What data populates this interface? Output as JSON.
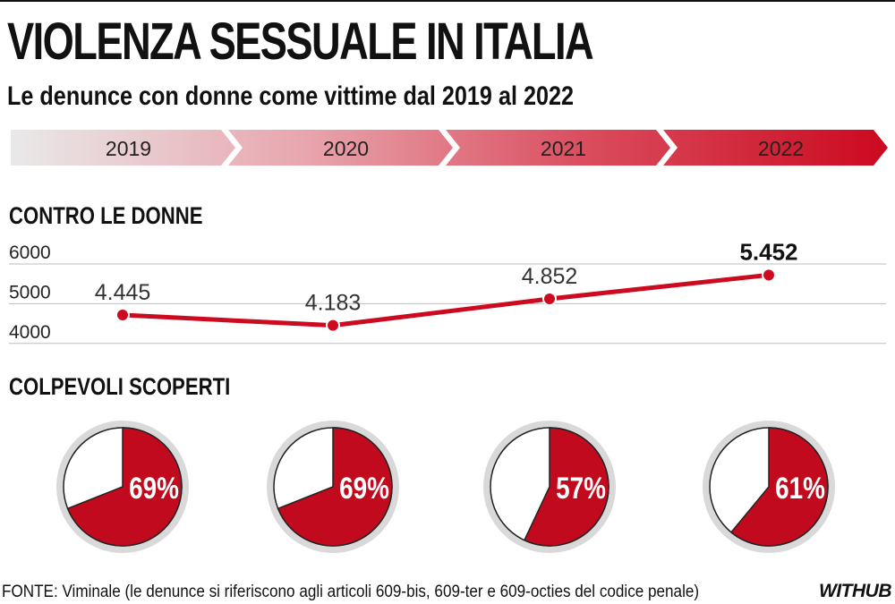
{
  "header": {
    "title": "VIOLENZA SESSUALE IN ITALIA",
    "subtitle": "Le denunce con donne come vittime dal 2019 al 2022"
  },
  "timeline": {
    "years": [
      "2019",
      "2020",
      "2021",
      "2022"
    ],
    "colors": [
      "#e9e9e9",
      "#e8a6ae",
      "#d94b5c",
      "#cc0a20"
    ]
  },
  "sections": {
    "line_title": "CONTRO LE DONNE",
    "pie_title": "COLPEVOLI SCOPERTI"
  },
  "chart_data": [
    {
      "type": "line",
      "title": "CONTRO LE DONNE",
      "x": [
        "2019",
        "2020",
        "2021",
        "2022"
      ],
      "series": [
        {
          "values": [
            4445,
            4183,
            4852,
            5452
          ],
          "labels": [
            "4.445",
            "4.183",
            "4.852",
            "5.452"
          ],
          "color": "#cc0a20"
        }
      ],
      "y_ticks": [
        6000,
        5000,
        4000
      ],
      "ylim": [
        3950,
        6000
      ],
      "grid": true,
      "highlight_last": true
    },
    {
      "type": "pie",
      "title": "COLPEVOLI SCOPERTI",
      "categories": [
        "2019",
        "2020",
        "2021",
        "2022"
      ],
      "values": [
        69,
        69,
        57,
        61
      ],
      "labels": [
        "69%",
        "69%",
        "57%",
        "61%"
      ],
      "colors": {
        "filled": "#c10a1e",
        "empty": "#ffffff",
        "ring": "#d9d9d9"
      }
    }
  ],
  "footer": {
    "source": "FONTE: Viminale (le denunce si riferiscono agli articoli 609-bis, 609-ter e 609-octies del codice penale)",
    "logo": "WITHUB"
  }
}
